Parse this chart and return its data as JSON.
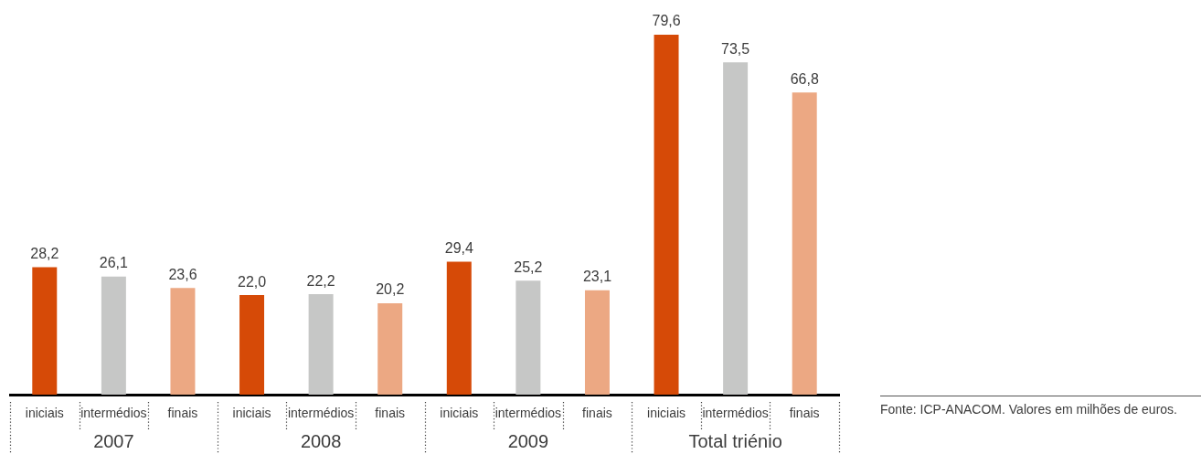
{
  "chart_data": {
    "type": "bar",
    "categories": [
      "2007",
      "2008",
      "2009",
      "Total triénio"
    ],
    "series": [
      {
        "name": "iniciais",
        "color": "#d64a07",
        "values": [
          28.2,
          22.0,
          29.4,
          79.6
        ],
        "value_labels": [
          "28,2",
          "22,0",
          "29,4",
          "79,6"
        ]
      },
      {
        "name": "intermédios",
        "color": "#c6c7c6",
        "values": [
          26.1,
          22.2,
          25.2,
          73.5
        ],
        "value_labels": [
          "26,1",
          "22,2",
          "25,2",
          "73,5"
        ]
      },
      {
        "name": "finais",
        "color": "#eca883",
        "values": [
          23.6,
          20.2,
          23.1,
          66.8
        ],
        "value_labels": [
          "23,6",
          "20,2",
          "23,1",
          "66,8"
        ]
      }
    ],
    "legend": false,
    "grid": false,
    "tick_labels": "x",
    "annotations": [
      "Fonte: ICP-ANACOM. Valores em milhões de euros."
    ]
  }
}
